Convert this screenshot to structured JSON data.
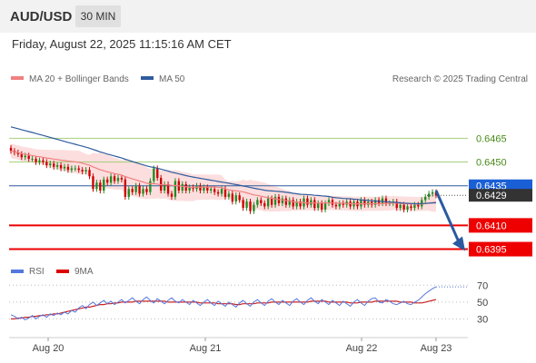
{
  "header": {
    "symbol": "AUD/USD",
    "interval": "30 MIN",
    "datetime": "Friday, August 22, 2025 11:15:16 AM CET"
  },
  "legend": {
    "items": [
      {
        "label": "MA 20 + Bollinger Bands",
        "color": "#f08080"
      },
      {
        "label": "MA 50",
        "color": "#2f5c9e"
      }
    ],
    "attribution": "Research © 2025 Trading Central"
  },
  "rsi_legend": {
    "items": [
      {
        "label": "RSI",
        "color": "#5577dd"
      },
      {
        "label": "9MA",
        "color": "#dd0000"
      }
    ]
  },
  "colors": {
    "candle_up": "#228b22",
    "candle_down": "#cc0000",
    "ma20": "#f08080",
    "band_fill": "#fbd8d8",
    "ma50": "#2f5c9e",
    "resistance": "#a6d07a",
    "support": "#ee0000",
    "pivot": "#2f5c9e",
    "current": "#333333",
    "pivot_label": "#1a5fd6",
    "arrow": "#2a5aa0",
    "rsi": "#5577dd",
    "rsi_ma": "#cc2222"
  },
  "chart_data": [
    {
      "type": "candlestick",
      "x_ticks": [
        "Aug 20",
        "Aug 21",
        "Aug 22",
        "Aug 23"
      ],
      "levels": [
        {
          "value": 0.6465,
          "label": "0.6465",
          "kind": "resistance"
        },
        {
          "value": 0.645,
          "label": "0.6450",
          "kind": "resistance"
        },
        {
          "value": 0.6435,
          "label": "0.6435",
          "kind": "pivot"
        },
        {
          "value": 0.6429,
          "label": "0.6429",
          "kind": "current"
        },
        {
          "value": 0.641,
          "label": "0.6410",
          "kind": "support"
        },
        {
          "value": 0.6395,
          "label": "0.6395",
          "kind": "support"
        }
      ],
      "forecast_arrow": {
        "from": 0.6432,
        "to": 0.6395
      },
      "price_close": [
        0.6457,
        0.6456,
        0.6455,
        0.6453,
        0.6454,
        0.6452,
        0.6452,
        0.645,
        0.6451,
        0.645,
        0.6448,
        0.6449,
        0.6447,
        0.6448,
        0.6446,
        0.6447,
        0.6445,
        0.6446,
        0.6446,
        0.6445,
        0.6444,
        0.6445,
        0.6441,
        0.6433,
        0.6437,
        0.6432,
        0.6439,
        0.6437,
        0.6441,
        0.6438,
        0.644,
        0.6439,
        0.6428,
        0.6433,
        0.6431,
        0.6435,
        0.643,
        0.6433,
        0.6431,
        0.6438,
        0.6446,
        0.644,
        0.6432,
        0.6436,
        0.643,
        0.6428,
        0.6438,
        0.6432,
        0.6436,
        0.6432,
        0.6434,
        0.6433,
        0.6435,
        0.6432,
        0.6434,
        0.6432,
        0.6433,
        0.6431,
        0.643,
        0.6433,
        0.6428,
        0.643,
        0.6425,
        0.6429,
        0.6426,
        0.6421,
        0.6425,
        0.6419,
        0.6423,
        0.6426,
        0.6424,
        0.6422,
        0.6427,
        0.6423,
        0.6428,
        0.6424,
        0.6427,
        0.6423,
        0.6426,
        0.6422,
        0.6425,
        0.6422,
        0.6427,
        0.6423,
        0.6426,
        0.6421,
        0.6424,
        0.642,
        0.6424,
        0.6426,
        0.6423,
        0.6422,
        0.6424,
        0.6423,
        0.6425,
        0.6422,
        0.6425,
        0.6422,
        0.6426,
        0.6423,
        0.6425,
        0.6423,
        0.6426,
        0.6424,
        0.6427,
        0.6424,
        0.6424,
        0.6425,
        0.6421,
        0.6423,
        0.642,
        0.6422,
        0.6421,
        0.6423,
        0.6422,
        0.6426,
        0.6428,
        0.643,
        0.6431,
        0.6429
      ],
      "ylim": [
        0.6385,
        0.6495
      ]
    },
    {
      "type": "line",
      "series": [
        {
          "name": "RSI"
        },
        {
          "name": "9MA"
        }
      ],
      "y_ticks": [
        70,
        50,
        30
      ],
      "ylim": [
        10,
        80
      ],
      "rsi_values": [
        35,
        33,
        30,
        32,
        29,
        31,
        34,
        30,
        33,
        35,
        32,
        36,
        34,
        37,
        35,
        38,
        36,
        40,
        38,
        43,
        46,
        42,
        47,
        50,
        46,
        49,
        52,
        48,
        51,
        47,
        50,
        53,
        49,
        52,
        55,
        51,
        48,
        53,
        56,
        52,
        49,
        54,
        51,
        48,
        52,
        55,
        51,
        49,
        53,
        50,
        47,
        52,
        49,
        46,
        50,
        53,
        49,
        46,
        51,
        48,
        45,
        50,
        47,
        44,
        49,
        52,
        48,
        45,
        50,
        53,
        49,
        46,
        51,
        54,
        50,
        47,
        52,
        49,
        46,
        51,
        54,
        50,
        47,
        52,
        55,
        51,
        48,
        53,
        50,
        47,
        52,
        49,
        46,
        51,
        48,
        45,
        50,
        53,
        49,
        46,
        51,
        54,
        55,
        50,
        49,
        53,
        51,
        48,
        47,
        49,
        51,
        48,
        47,
        50,
        52,
        56,
        60,
        63,
        66,
        68
      ],
      "ma9_values": [
        30,
        30,
        31,
        31,
        32,
        32,
        33,
        33,
        34,
        34,
        35,
        35,
        36,
        36,
        37,
        38,
        39,
        40,
        41,
        42,
        43,
        44,
        44,
        45,
        46,
        47,
        47,
        48,
        48,
        49,
        49,
        50,
        50,
        50,
        50,
        51,
        51,
        51,
        51,
        51,
        51,
        51,
        51,
        51,
        50,
        50,
        50,
        50,
        50,
        50,
        50,
        50,
        50,
        49,
        49,
        49,
        49,
        49,
        48,
        48,
        48,
        48,
        48,
        47,
        47,
        48,
        48,
        48,
        48,
        49,
        49,
        49,
        49,
        50,
        50,
        50,
        50,
        50,
        50,
        50,
        50,
        50,
        50,
        50,
        51,
        51,
        51,
        51,
        51,
        50,
        50,
        50,
        50,
        50,
        50,
        49,
        49,
        49,
        50,
        50,
        50,
        50,
        51,
        51,
        51,
        51,
        51,
        51,
        51,
        50,
        50,
        50,
        50,
        49,
        49,
        49,
        50,
        51,
        52,
        53
      ]
    }
  ]
}
